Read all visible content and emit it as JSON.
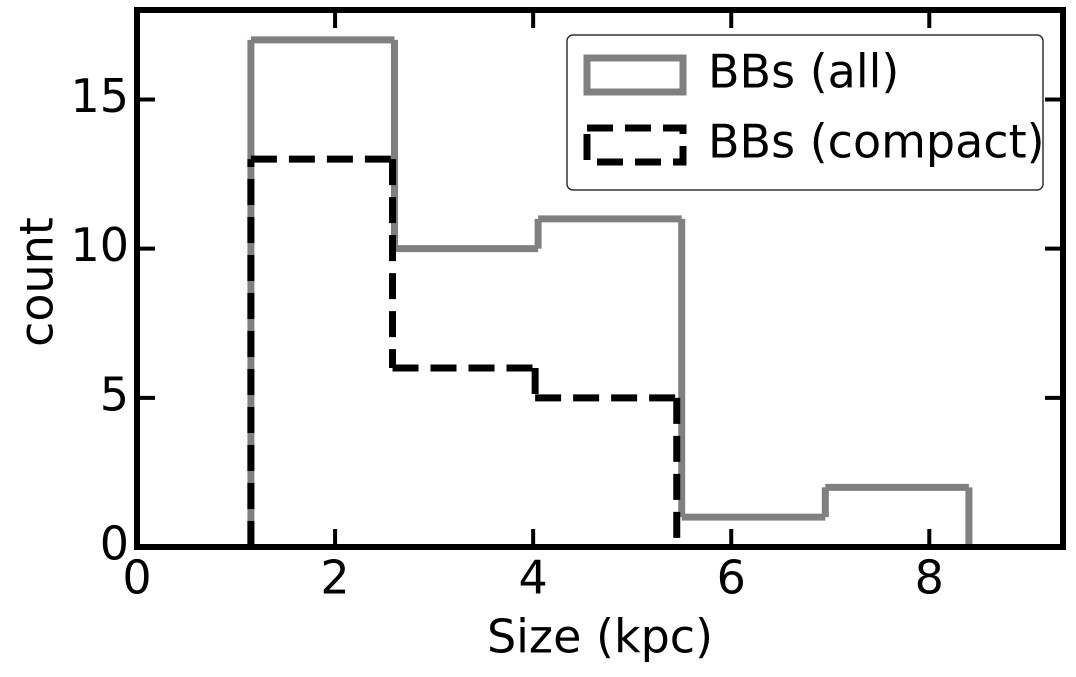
{
  "chart_data": {
    "type": "histogram",
    "xlabel": "Size (kpc)",
    "ylabel": "count",
    "xlim": [
      0,
      9.35
    ],
    "ylim": [
      0,
      18
    ],
    "xticks": [
      0,
      2,
      4,
      6,
      8
    ],
    "yticks": [
      0,
      5,
      10,
      15
    ],
    "legend": "upper right",
    "series": [
      {
        "name": "BBs (all)",
        "color": "#808080",
        "linestyle": "solid",
        "bins": [
          1.15,
          2.6,
          4.05,
          5.5,
          6.95,
          8.4
        ],
        "values": [
          17,
          10,
          11,
          1,
          2
        ]
      },
      {
        "name": "BBs (compact)",
        "color": "#000000",
        "linestyle": "dashed",
        "bins": [
          1.15,
          2.58,
          4.02,
          5.45
        ],
        "values": [
          13,
          6,
          5
        ]
      }
    ]
  }
}
